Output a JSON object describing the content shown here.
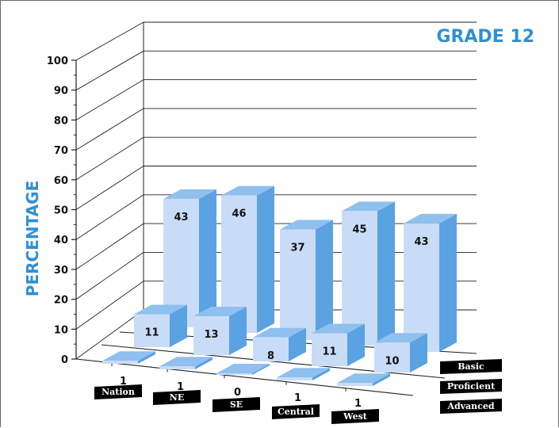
{
  "chart_data": {
    "type": "bar",
    "title": "GRADE 12",
    "ylabel": "PERCENTAGE",
    "ylim": [
      0,
      100
    ],
    "yticks": [
      "0",
      "10",
      "20",
      "30",
      "40",
      "50",
      "60",
      "70",
      "80",
      "90",
      "100"
    ],
    "categories": [
      "Nation",
      "NE",
      "SE",
      "Central",
      "West"
    ],
    "series": [
      {
        "name": "Advanced",
        "values": [
          1,
          1,
          0,
          1,
          1
        ],
        "labels": [
          "1",
          "1",
          "0",
          "1",
          "1"
        ]
      },
      {
        "name": "Proficient",
        "values": [
          11,
          13,
          8,
          11,
          10
        ],
        "labels": [
          "11",
          "13",
          "8",
          "11",
          "10"
        ]
      },
      {
        "name": "Basic",
        "values": [
          43,
          46,
          37,
          45,
          43
        ],
        "labels": [
          "43",
          "46",
          "37",
          "45",
          "43"
        ]
      }
    ],
    "grid": true,
    "colors": {
      "face": "#c9dcf7",
      "side": "#5aa2e2",
      "top": "#8fc0ee",
      "title": "#2f8fd6",
      "grid": "#222222"
    }
  }
}
